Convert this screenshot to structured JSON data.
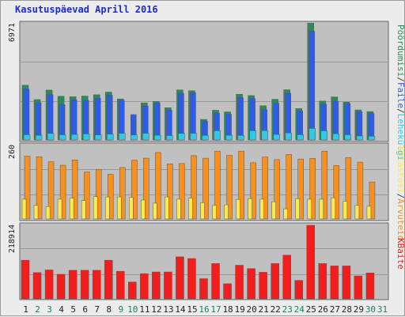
{
  "title": "Kasutuspäevad Aprill 2016",
  "colors": {
    "panel_bg": "#c0c0c0",
    "grid": "#999999",
    "visits": "#2c8b57",
    "pages": "#2f5ce6",
    "hits": "#33c8e6",
    "files": "#33c8e6",
    "files_front": "#ffe94a",
    "hosts": "#f7901e",
    "kbytes": "#f21d1d",
    "weekday_label": "#222222",
    "weekend_label": "#18845a"
  },
  "chart_data": [
    {
      "type": "bar",
      "ylim": [
        0,
        6971
      ],
      "ytick": "6971",
      "legend": [
        {
          "label": "Pöördumisi",
          "color": "#2c8b57"
        },
        {
          "label": "/",
          "color": "#444444"
        },
        {
          "label": "Faile",
          "color": "#2f5ce6"
        },
        {
          "label": "/",
          "color": "#444444"
        },
        {
          "label": "Lehekülgi",
          "color": "#33c8e6"
        }
      ],
      "categories": [
        "1",
        "2",
        "3",
        "4",
        "5",
        "6",
        "7",
        "8",
        "9",
        "10",
        "11",
        "12",
        "13",
        "14",
        "15",
        "16",
        "17",
        "18",
        "19",
        "20",
        "21",
        "22",
        "23",
        "24",
        "25",
        "26",
        "27",
        "28",
        "29",
        "30",
        "31"
      ],
      "series": [
        {
          "name": "Pöördumisi",
          "values": [
            3280,
            2420,
            2990,
            2620,
            2590,
            2630,
            2710,
            2870,
            2460,
            0,
            2220,
            2310,
            1930,
            3000,
            2950,
            1230,
            1780,
            1680,
            2740,
            2660,
            2050,
            2440,
            3010,
            1880,
            7010,
            2330,
            2580,
            2270,
            1800,
            1700,
            0
          ]
        },
        {
          "name": "Faile",
          "values": [
            3040,
            2230,
            2720,
            2120,
            2400,
            2370,
            2490,
            2680,
            2380,
            1520,
            2030,
            2220,
            1790,
            2800,
            2830,
            1120,
            1610,
            1540,
            2540,
            2480,
            1810,
            2200,
            2800,
            1740,
            6520,
            2150,
            2320,
            2180,
            1690,
            1580,
            0
          ]
        },
        {
          "name": "Lehekülgi",
          "values": [
            310,
            280,
            390,
            310,
            330,
            360,
            300,
            350,
            400,
            300,
            400,
            280,
            260,
            390,
            400,
            270,
            550,
            280,
            270,
            550,
            560,
            330,
            420,
            310,
            690,
            550,
            370,
            310,
            240,
            220,
            0
          ]
        }
      ]
    },
    {
      "type": "bar",
      "ylim": [
        0,
        260
      ],
      "ytick": "260",
      "legend": [
        {
          "label": "Külastusi",
          "color": "#ffe94a"
        },
        {
          "label": "/",
          "color": "#444444"
        },
        {
          "label": "Arvuteid",
          "color": "#f7901e"
        }
      ],
      "categories": [
        "1",
        "2",
        "3",
        "4",
        "5",
        "6",
        "7",
        "8",
        "9",
        "10",
        "11",
        "12",
        "13",
        "14",
        "15",
        "16",
        "17",
        "18",
        "19",
        "20",
        "21",
        "22",
        "23",
        "24",
        "25",
        "26",
        "27",
        "28",
        "29",
        "30",
        "31"
      ],
      "series": [
        {
          "name": "Külastusi",
          "values": [
            70,
            48,
            44,
            70,
            74,
            65,
            79,
            78,
            78,
            76,
            67,
            56,
            78,
            70,
            74,
            58,
            48,
            50,
            69,
            72,
            70,
            61,
            36,
            72,
            70,
            70,
            75,
            63,
            48,
            45,
            0
          ]
        },
        {
          "name": "Arvuteid",
          "values": [
            222,
            220,
            202,
            190,
            209,
            166,
            175,
            158,
            182,
            208,
            215,
            235,
            195,
            196,
            224,
            215,
            240,
            225,
            240,
            199,
            219,
            210,
            228,
            212,
            214,
            240,
            189,
            217,
            201,
            131,
            0
          ]
        }
      ]
    },
    {
      "type": "bar",
      "ylim": [
        0,
        218914
      ],
      "ytick": "218914",
      "legend": [
        {
          "label": "KBaite",
          "color": "#f21d1d"
        }
      ],
      "categories": [
        "1",
        "2",
        "3",
        "4",
        "5",
        "6",
        "7",
        "8",
        "9",
        "10",
        "11",
        "12",
        "13",
        "14",
        "15",
        "16",
        "17",
        "18",
        "19",
        "20",
        "21",
        "22",
        "23",
        "24",
        "25",
        "26",
        "27",
        "28",
        "29",
        "30",
        "31"
      ],
      "series": [
        {
          "name": "KBaite",
          "values": [
            115000,
            78000,
            86000,
            73000,
            85000,
            85000,
            85000,
            115000,
            82000,
            50000,
            75000,
            80000,
            80000,
            125000,
            120000,
            60000,
            105000,
            45000,
            100000,
            90000,
            79000,
            105000,
            130000,
            55000,
            218914,
            105000,
            98000,
            98000,
            68000,
            77000,
            0
          ]
        }
      ]
    }
  ]
}
